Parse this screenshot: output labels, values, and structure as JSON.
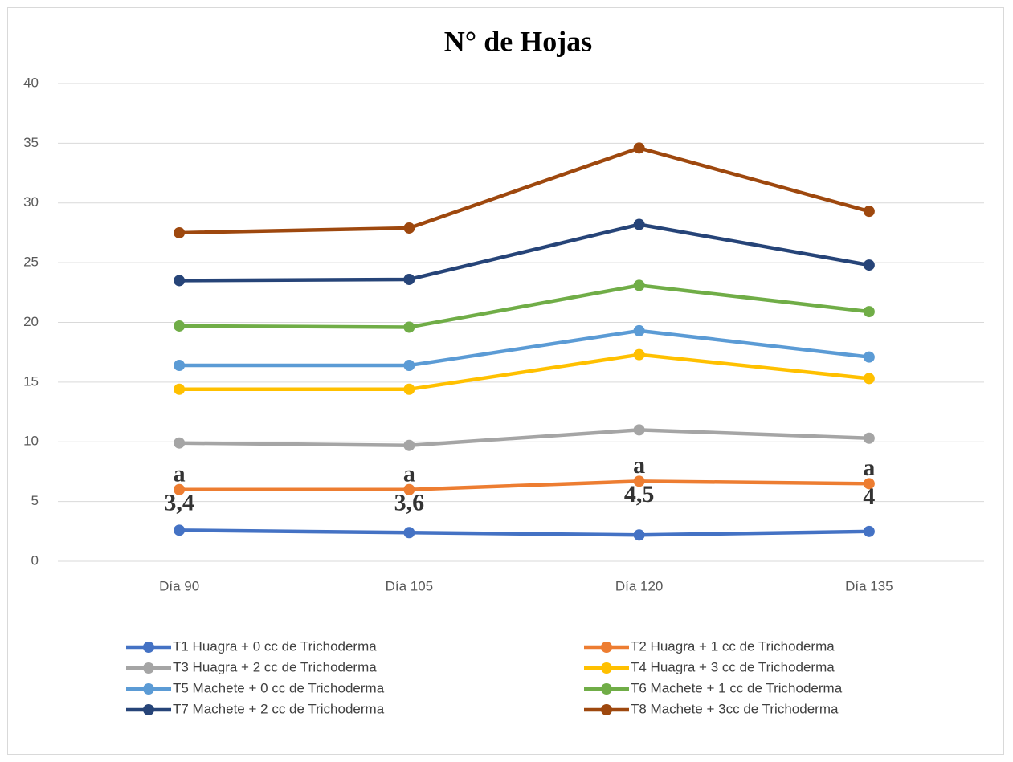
{
  "chart_data": {
    "type": "line",
    "title": "N° de Hojas",
    "categories": [
      "Día 90",
      "Día 105",
      "Día 120",
      "Día 135"
    ],
    "series": [
      {
        "name": "T1  Huagra + 0 cc de Trichoderma",
        "color": "#4472c4",
        "values": [
          2.6,
          2.4,
          2.2,
          2.5
        ]
      },
      {
        "name": "T2  Huagra + 1 cc de Trichoderma",
        "color": "#ed7d31",
        "values": [
          6.0,
          6.0,
          6.7,
          6.5
        ]
      },
      {
        "name": "T3  Huagra + 2 cc de Trichoderma",
        "color": "#a5a5a5",
        "values": [
          9.9,
          9.7,
          11.0,
          10.3
        ]
      },
      {
        "name": "T4  Huagra + 3 cc de Trichoderma",
        "color": "#ffc000",
        "values": [
          14.4,
          14.4,
          17.3,
          15.3
        ]
      },
      {
        "name": "T5 Machete + 0 cc de Trichoderma",
        "color": "#5b9bd5",
        "values": [
          16.4,
          16.4,
          19.3,
          17.1
        ]
      },
      {
        "name": "T6 Machete + 1 cc de Trichoderma",
        "color": "#70ad47",
        "values": [
          19.7,
          19.6,
          23.1,
          20.9
        ]
      },
      {
        "name": "T7 Machete + 2 cc de Trichoderma",
        "color": "#264478",
        "values": [
          23.5,
          23.6,
          28.2,
          24.8
        ]
      },
      {
        "name": "T8 Machete + 3cc de Trichoderma",
        "color": "#9e480e",
        "values": [
          27.5,
          27.9,
          34.6,
          29.3
        ]
      }
    ],
    "annotations": [
      [
        "a",
        "3,4"
      ],
      [
        "a",
        "3,6"
      ],
      [
        "a",
        "4,5"
      ],
      [
        "a",
        "4"
      ]
    ],
    "ylim": [
      0,
      40
    ],
    "yticks": [
      0,
      5,
      10,
      15,
      20,
      25,
      30,
      35,
      40
    ],
    "grid": true,
    "legend": "bottom"
  }
}
